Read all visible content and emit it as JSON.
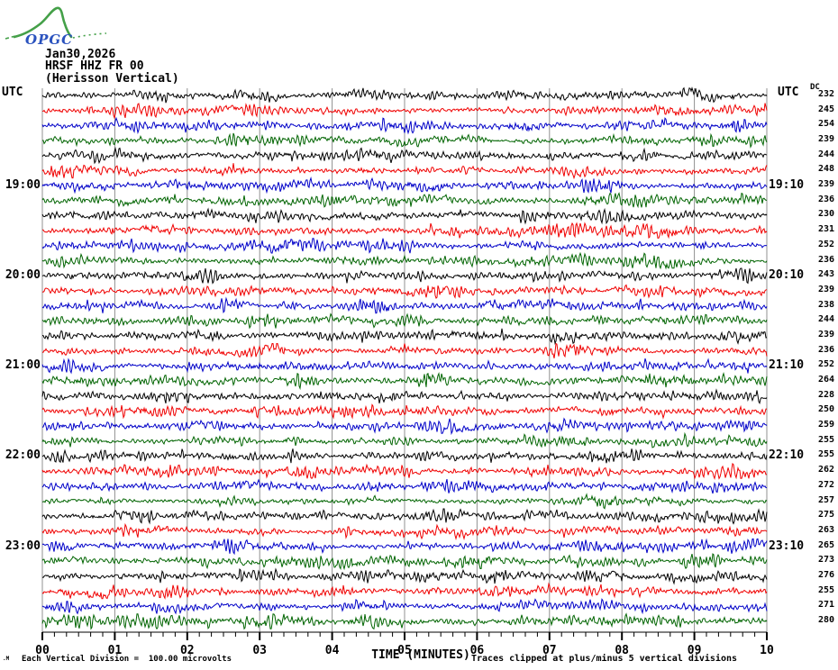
{
  "header": {
    "logo_text": "OPGC",
    "date": "Jan30,2026",
    "station": "HRSF HHZ FR 00",
    "location": "(Herisson Vertical)"
  },
  "axes": {
    "utc_left": "UTC",
    "utc_right": "UTC",
    "dc_header": "DC"
  },
  "x_axis": {
    "title": "TIME (MINUTES)",
    "tick_labels": [
      "00",
      "01",
      "02",
      "03",
      "04",
      "05",
      "06",
      "07",
      "08",
      "09",
      "10"
    ],
    "minor_ticks_per_minute": 6
  },
  "footnotes": {
    "left": "Each Vertical Division =  100.00 microvolts",
    "right": "Traces clipped at plus/minus 5 vertical divisions",
    "tiny_mark": ".M"
  },
  "chart_data": {
    "type": "line",
    "subtype": "helicorder-seismogram",
    "title": "HRSF HHZ FR 00 (Herisson Vertical) Jan30,2026",
    "xlabel": "TIME (MINUTES)",
    "x_range_minutes": [
      0,
      10
    ],
    "rows": 36,
    "minutes_per_row": 10,
    "row_start_time_utc": "18:00",
    "row_end_time_utc": "24:00",
    "trace_colors": [
      "#000000",
      "#f00000",
      "#0000c8",
      "#006400"
    ],
    "grid_color": "#909090",
    "grid": "vertical lines at every minute",
    "left_hour_labels": [
      {
        "row": 6,
        "label": "19:00"
      },
      {
        "row": 12,
        "label": "20:00"
      },
      {
        "row": 18,
        "label": "21:00"
      },
      {
        "row": 24,
        "label": "22:00"
      },
      {
        "row": 30,
        "label": "23:00"
      }
    ],
    "right_hour_labels": [
      {
        "row": 6,
        "label": "19:10"
      },
      {
        "row": 12,
        "label": "20:10"
      },
      {
        "row": 18,
        "label": "21:10"
      },
      {
        "row": 24,
        "label": "22:10"
      },
      {
        "row": 30,
        "label": "23:10"
      }
    ],
    "dc_values": [
      232,
      245,
      254,
      239,
      244,
      248,
      239,
      236,
      230,
      231,
      252,
      236,
      243,
      239,
      238,
      244,
      239,
      236,
      252,
      264,
      228,
      250,
      259,
      255,
      255,
      262,
      272,
      257,
      275,
      263,
      265,
      273,
      276,
      255,
      271,
      280
    ],
    "vertical_division_microvolts": 100.0,
    "clip_divisions": 5,
    "waveform": "continuous ambient seismic noise on every row, clipped at plus/minus 5 divisions"
  }
}
